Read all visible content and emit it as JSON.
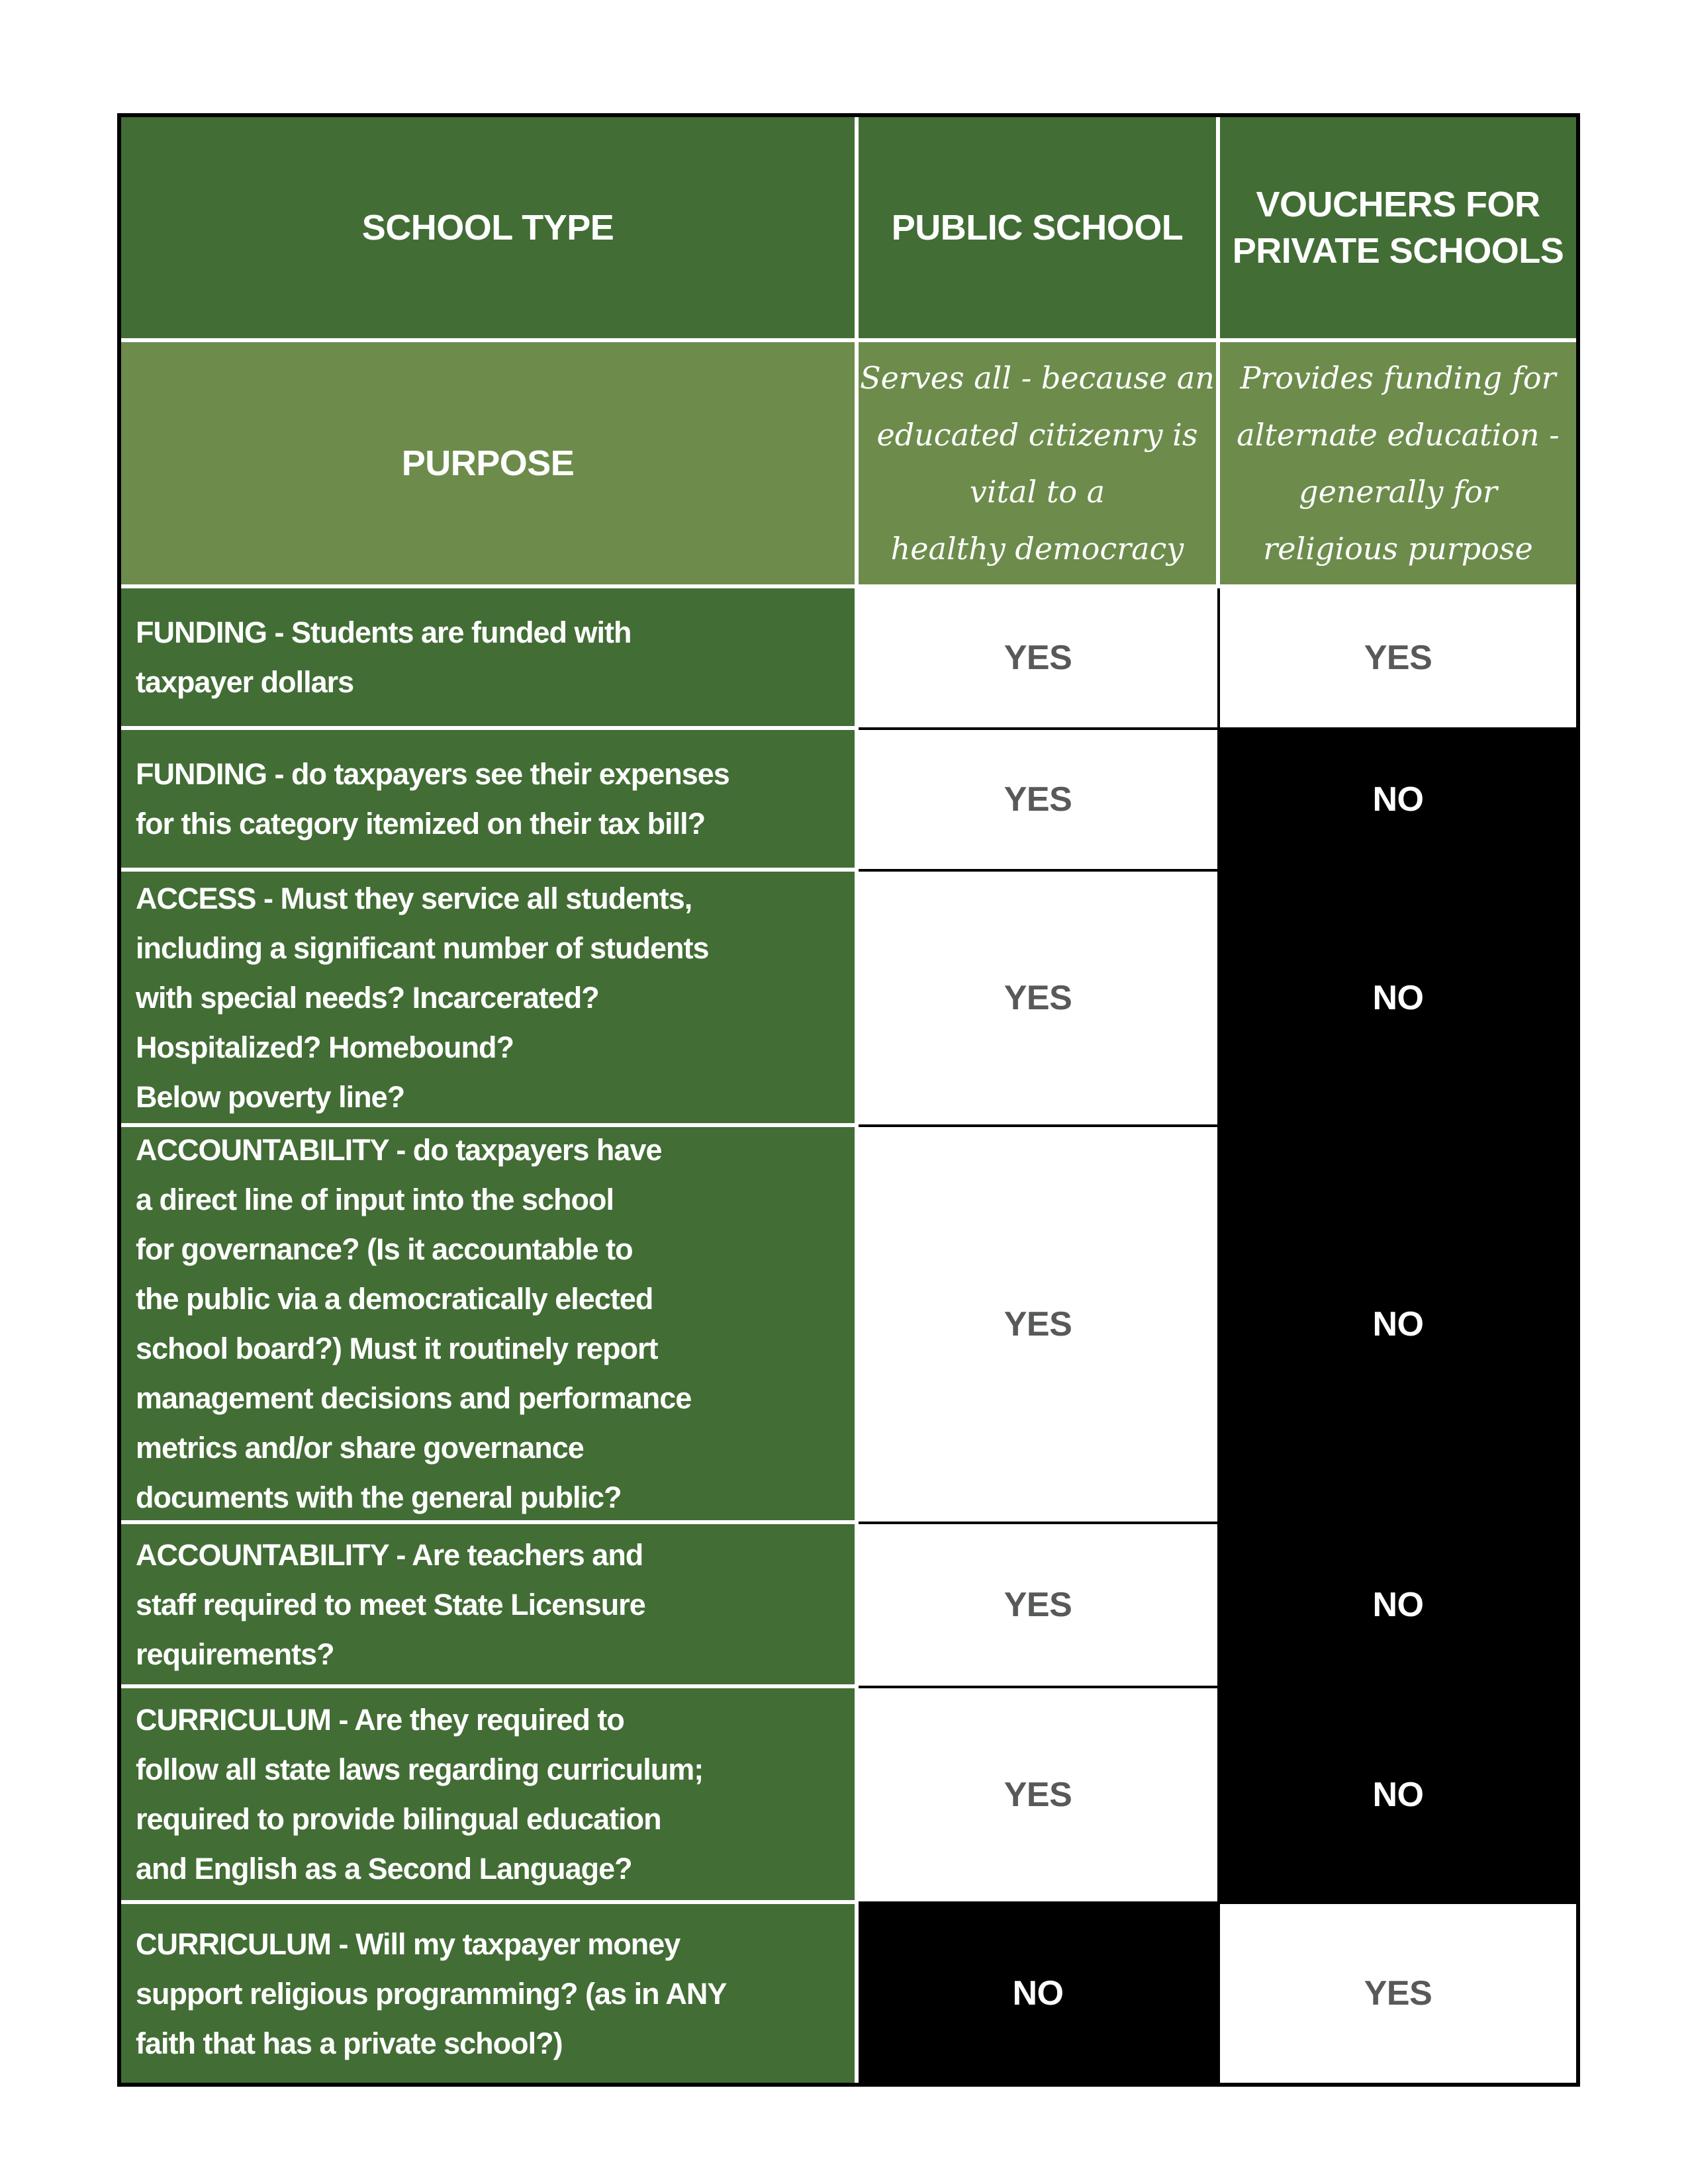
{
  "colors": {
    "dark_green": "#426d35",
    "light_green": "#6d8c4c",
    "yes_cell_bg": "#ffffff",
    "yes_text": "#58595b",
    "no_cell_bg": "#000000",
    "no_text": "#ffffff",
    "grid_white": "#ffffff",
    "grid_black": "#000000"
  },
  "table": {
    "header": {
      "school_type": "SCHOOL TYPE",
      "public_school": "PUBLIC SCHOOL",
      "vouchers": "VOUCHERS FOR\nPRIVATE SCHOOLS"
    },
    "purpose": {
      "label": "PURPOSE",
      "public": "Serves all - because an\neducated citizenry is\nvital to a\nhealthy democracy",
      "voucher": "Provides funding for\nalternate education -\ngenerally for\nreligious purpose"
    },
    "rows": [
      {
        "label": "FUNDING - Students are funded with\ntaxpayer dollars",
        "public": {
          "text": "YES",
          "variant": "light"
        },
        "voucher": {
          "text": "YES",
          "variant": "light"
        }
      },
      {
        "label": "FUNDING - do taxpayers see their expenses\nfor this category  itemized on their tax bill?",
        "public": {
          "text": "YES",
          "variant": "light"
        },
        "voucher": {
          "text": "NO",
          "variant": "dark"
        }
      },
      {
        "label": "ACCESS - Must they service all students,\nincluding a significant number of students\nwith special needs? Incarcerated?\nHospitalized? Homebound?\nBelow poverty line?",
        "public": {
          "text": "YES",
          "variant": "light"
        },
        "voucher": {
          "text": "NO",
          "variant": "dark"
        }
      },
      {
        "label": "ACCOUNTABILITY - do taxpayers have\na direct line of input into the school\nfor governance? (Is it accountable to\nthe public via a democratically elected\nschool board?) Must it routinely report\nmanagement decisions and performance\nmetrics and/or share governance\ndocuments with the general public?",
        "public": {
          "text": "YES",
          "variant": "light"
        },
        "voucher": {
          "text": "NO",
          "variant": "dark"
        }
      },
      {
        "label": "ACCOUNTABILITY - Are teachers and\nstaff required to meet State Licensure\nrequirements?",
        "public": {
          "text": "YES",
          "variant": "light"
        },
        "voucher": {
          "text": "NO",
          "variant": "dark"
        }
      },
      {
        "label": "CURRICULUM - Are they required to\nfollow all state laws regarding curriculum;\nrequired to provide bilingual education\nand English as a Second Language?",
        "public": {
          "text": "YES",
          "variant": "light"
        },
        "voucher": {
          "text": "NO",
          "variant": "dark"
        }
      },
      {
        "label": "CURRICULUM - Will my taxpayer money\nsupport religious programming? (as in ANY\nfaith that has a private school?)",
        "public": {
          "text": "NO",
          "variant": "dark"
        },
        "voucher": {
          "text": "YES",
          "variant": "light"
        }
      }
    ]
  }
}
